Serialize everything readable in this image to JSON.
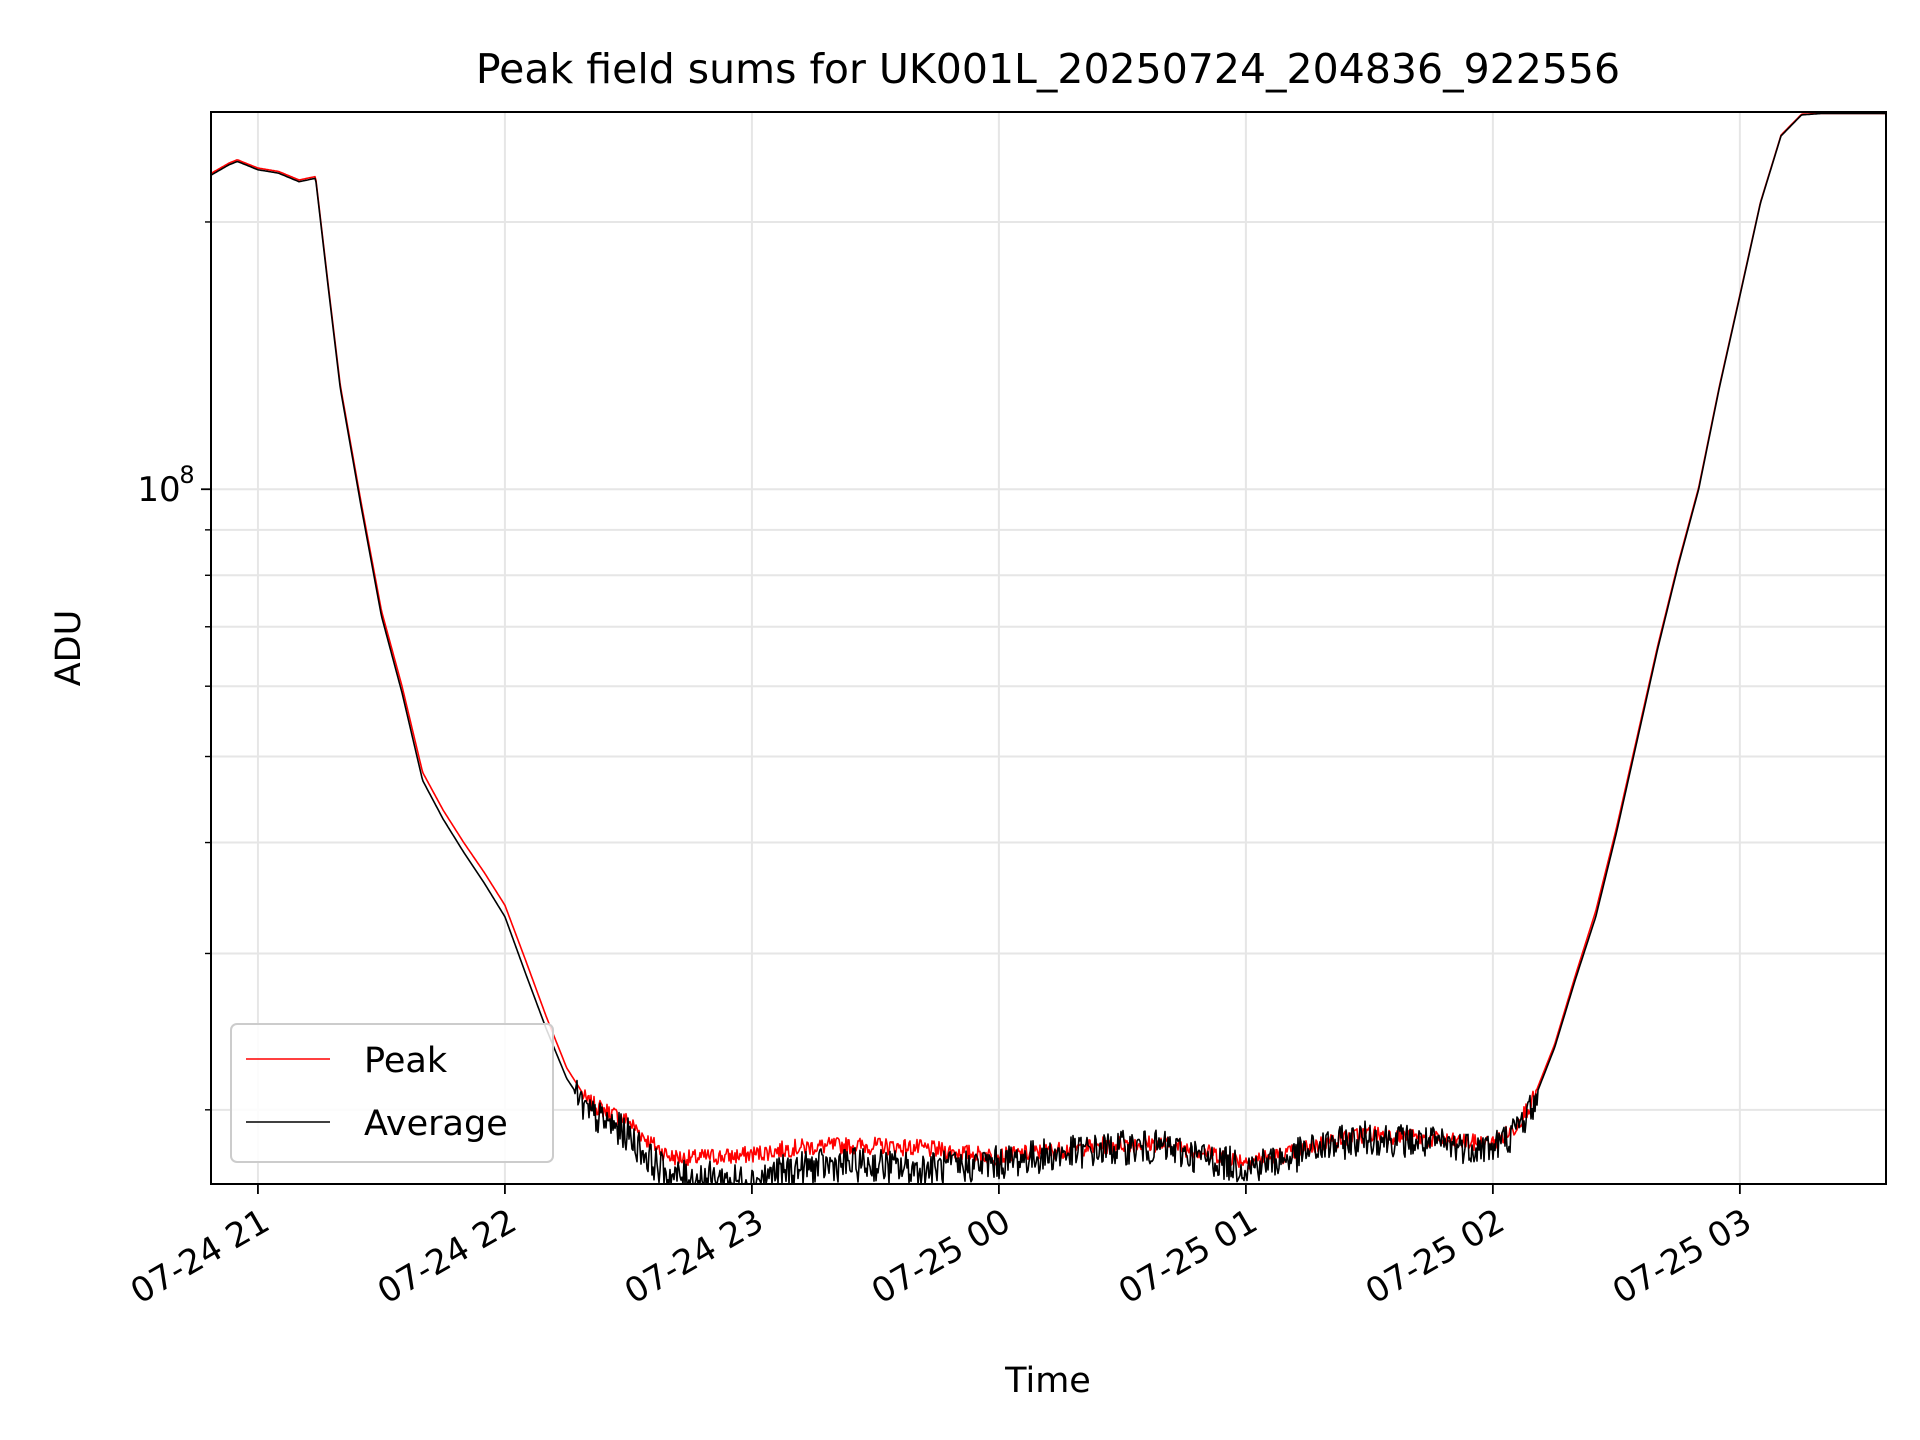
{
  "chart_data": {
    "type": "line",
    "title": "Peak field sums for UK001L_20250724_204836_922556",
    "xlabel": "Time",
    "ylabel": "ADU",
    "y_scale": "log",
    "ylim": [
      16500000,
      266000000
    ],
    "xlim": [
      "2025-07-24 20:48:36",
      "2025-07-25 03:35:30"
    ],
    "x_ticks": [
      {
        "t": "2025-07-24 21:00",
        "label": "07-24 21"
      },
      {
        "t": "2025-07-24 22:00",
        "label": "07-24 22"
      },
      {
        "t": "2025-07-24 23:00",
        "label": "07-24 23"
      },
      {
        "t": "2025-07-25 00:00",
        "label": "07-25 00"
      },
      {
        "t": "2025-07-25 01:00",
        "label": "07-25 01"
      },
      {
        "t": "2025-07-25 02:00",
        "label": "07-25 02"
      },
      {
        "t": "2025-07-25 03:00",
        "label": "07-25 03"
      }
    ],
    "y_major_tick": {
      "value": 100000000,
      "base": "10",
      "exp": "8"
    },
    "y_minor_ticks": [
      20000000,
      30000000,
      40000000,
      50000000,
      60000000,
      70000000,
      80000000,
      90000000,
      200000000
    ],
    "grid": true,
    "legend": {
      "placement": "lower-left",
      "entries": [
        "Peak",
        "Average"
      ]
    },
    "series": [
      {
        "name": "Average",
        "color": "#000000",
        "noise": 0.03,
        "x": [
          "2025-07-24 20:48",
          "2025-07-24 20:53",
          "2025-07-24 20:55",
          "2025-07-24 21:00",
          "2025-07-24 21:05",
          "2025-07-24 21:10",
          "2025-07-24 21:14",
          "2025-07-24 21:17",
          "2025-07-24 21:20",
          "2025-07-24 21:25",
          "2025-07-24 21:30",
          "2025-07-24 21:35",
          "2025-07-24 21:40",
          "2025-07-24 21:45",
          "2025-07-24 21:50",
          "2025-07-24 21:55",
          "2025-07-24 22:00",
          "2025-07-24 22:05",
          "2025-07-24 22:10",
          "2025-07-24 22:15",
          "2025-07-24 22:20",
          "2025-07-24 22:25",
          "2025-07-24 22:30",
          "2025-07-24 22:35",
          "2025-07-24 22:40",
          "2025-07-24 22:45",
          "2025-07-24 22:50",
          "2025-07-24 22:55",
          "2025-07-24 23:00",
          "2025-07-24 23:10",
          "2025-07-24 23:20",
          "2025-07-24 23:30",
          "2025-07-24 23:40",
          "2025-07-24 23:50",
          "2025-07-25 00:00",
          "2025-07-25 00:10",
          "2025-07-25 00:20",
          "2025-07-25 00:30",
          "2025-07-25 00:40",
          "2025-07-25 00:50",
          "2025-07-25 01:00",
          "2025-07-25 01:10",
          "2025-07-25 01:20",
          "2025-07-25 01:30",
          "2025-07-25 01:40",
          "2025-07-25 01:50",
          "2025-07-25 02:00",
          "2025-07-25 02:05",
          "2025-07-25 02:10",
          "2025-07-25 02:15",
          "2025-07-25 02:20",
          "2025-07-25 02:25",
          "2025-07-25 02:30",
          "2025-07-25 02:35",
          "2025-07-25 02:40",
          "2025-07-25 02:45",
          "2025-07-25 02:50",
          "2025-07-25 02:55",
          "2025-07-25 03:00",
          "2025-07-25 03:05",
          "2025-07-25 03:10",
          "2025-07-25 03:15",
          "2025-07-25 03:20",
          "2025-07-25 03:25",
          "2025-07-25 03:30",
          "2025-07-25 03:35"
        ],
        "y": [
          225000000,
          232000000,
          234000000,
          229000000,
          227000000,
          222000000,
          224000000,
          170000000,
          130000000,
          96000000,
          72000000,
          59000000,
          47000000,
          42500000,
          39000000,
          36000000,
          33000000,
          28500000,
          24700000,
          21700000,
          20000000,
          19500000,
          18900000,
          17800000,
          17000000,
          16900000,
          16900000,
          16800000,
          16800000,
          17300000,
          17500000,
          17500000,
          17300000,
          17400000,
          17600000,
          17900000,
          18100000,
          18300000,
          18300000,
          17800000,
          17400000,
          17800000,
          18400000,
          18800000,
          18600000,
          18400000,
          18300000,
          19000000,
          20500000,
          23500000,
          28000000,
          33000000,
          41000000,
          52000000,
          66000000,
          82000000,
          100000000,
          130000000,
          165000000,
          210000000,
          250000000,
          264000000,
          265000000,
          265000000,
          265000000,
          265000000
        ]
      },
      {
        "name": "Peak",
        "color": "#ff0000",
        "noise": 0.015,
        "x": [
          "2025-07-24 20:48",
          "2025-07-24 20:53",
          "2025-07-24 20:55",
          "2025-07-24 21:00",
          "2025-07-24 21:05",
          "2025-07-24 21:10",
          "2025-07-24 21:14",
          "2025-07-24 21:17",
          "2025-07-24 21:20",
          "2025-07-24 21:25",
          "2025-07-24 21:30",
          "2025-07-24 21:35",
          "2025-07-24 21:40",
          "2025-07-24 21:45",
          "2025-07-24 21:50",
          "2025-07-24 21:55",
          "2025-07-24 22:00",
          "2025-07-24 22:05",
          "2025-07-24 22:10",
          "2025-07-24 22:15",
          "2025-07-24 22:20",
          "2025-07-24 22:25",
          "2025-07-24 22:30",
          "2025-07-24 22:35",
          "2025-07-24 22:40",
          "2025-07-24 22:45",
          "2025-07-24 22:50",
          "2025-07-24 22:55",
          "2025-07-24 23:00",
          "2025-07-24 23:10",
          "2025-07-24 23:20",
          "2025-07-24 23:30",
          "2025-07-24 23:40",
          "2025-07-24 23:50",
          "2025-07-25 00:00",
          "2025-07-25 00:10",
          "2025-07-25 00:20",
          "2025-07-25 00:30",
          "2025-07-25 00:40",
          "2025-07-25 00:50",
          "2025-07-25 01:00",
          "2025-07-25 01:10",
          "2025-07-25 01:20",
          "2025-07-25 01:30",
          "2025-07-25 01:40",
          "2025-07-25 01:50",
          "2025-07-25 02:00",
          "2025-07-25 02:05",
          "2025-07-25 02:10",
          "2025-07-25 02:15",
          "2025-07-25 02:20",
          "2025-07-25 02:25",
          "2025-07-25 02:30",
          "2025-07-25 02:35",
          "2025-07-25 02:40",
          "2025-07-25 02:45",
          "2025-07-25 02:50",
          "2025-07-25 02:55",
          "2025-07-25 03:00",
          "2025-07-25 03:05",
          "2025-07-25 03:10",
          "2025-07-25 03:15",
          "2025-07-25 03:20",
          "2025-07-25 03:25",
          "2025-07-25 03:30",
          "2025-07-25 03:35"
        ],
        "y": [
          226000000,
          233000000,
          235000000,
          230000000,
          228000000,
          223000000,
          225000000,
          171000000,
          131000000,
          97000000,
          73000000,
          60000000,
          48000000,
          43500000,
          40000000,
          37000000,
          34000000,
          29500000,
          25500000,
          22300000,
          20500000,
          20000000,
          19500000,
          18500000,
          17800000,
          17700000,
          17800000,
          17800000,
          17900000,
          18200000,
          18300000,
          18300000,
          18200000,
          18000000,
          17800000,
          18000000,
          18200000,
          18400000,
          18400000,
          18000000,
          17600000,
          17900000,
          18500000,
          18900000,
          18700000,
          18500000,
          18400000,
          19100000,
          20700000,
          23700000,
          28300000,
          33500000,
          41500000,
          52500000,
          66500000,
          82500000,
          100500000,
          130500000,
          165500000,
          210500000,
          250500000,
          264500000,
          265000000,
          265000000,
          265000000,
          265000000
        ]
      }
    ]
  }
}
